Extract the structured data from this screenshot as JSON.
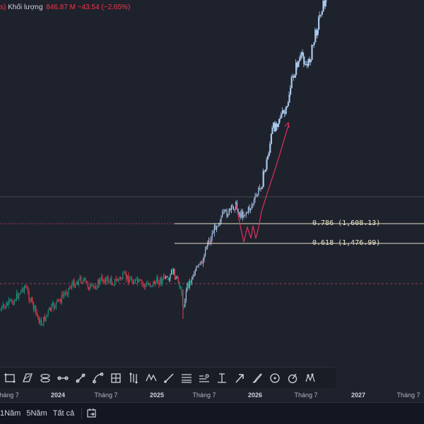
{
  "legend": {
    "lead_glyph": "s)",
    "title": "Khối lượng",
    "value": "846.87 M",
    "change": "−43.54 (−2.65%)"
  },
  "fib_levels": [
    {
      "label": "0.786 (1,608.13)",
      "price": 1608.13
    },
    {
      "label": "0.618 (1,476.99)",
      "price": 1476.99
    }
  ],
  "colors": {
    "background": "#1e222d",
    "bull_candle": "#a9c7ea",
    "bull_candle_early": "#089981",
    "bear_candle": "#f23645",
    "fib_line": "#e8e3c5",
    "projection_arrow": "#e0315e",
    "hline_red": "#a23a55",
    "hline_gray": "#434651"
  },
  "toolbar": {
    "tools": [
      {
        "name": "rectangle-icon"
      },
      {
        "name": "parallelogram-icon"
      },
      {
        "name": "ellipse-channel-icon"
      },
      {
        "name": "path-icon"
      },
      {
        "name": "trend-line-icon"
      },
      {
        "name": "curve-icon"
      },
      {
        "name": "grid-icon"
      },
      {
        "name": "fork-icon"
      },
      {
        "name": "xabcd-pattern-icon"
      },
      {
        "name": "ray-icon"
      },
      {
        "name": "fib-retracement-icon"
      },
      {
        "name": "fib-channel-icon"
      },
      {
        "name": "fib-timezone-icon"
      },
      {
        "name": "arrow-marker-icon"
      },
      {
        "name": "brush-icon"
      },
      {
        "name": "circle-icon"
      },
      {
        "name": "cycle-icon"
      },
      {
        "name": "elliott-wave-icon"
      }
    ]
  },
  "time_axis": {
    "ticks": [
      {
        "label": "háng 7",
        "year": false
      },
      {
        "label": "2024",
        "year": true
      },
      {
        "label": "Tháng 7",
        "year": false
      },
      {
        "label": "2025",
        "year": true
      },
      {
        "label": "Tháng 7",
        "year": false
      },
      {
        "label": "2026",
        "year": true
      },
      {
        "label": "Tháng 7",
        "year": false
      },
      {
        "label": "2027",
        "year": true
      },
      {
        "label": "Tháng 7",
        "year": false
      }
    ]
  },
  "bottom_bar": {
    "ranges": [
      "1Năm",
      "5Năm",
      "Tất cả"
    ]
  }
}
